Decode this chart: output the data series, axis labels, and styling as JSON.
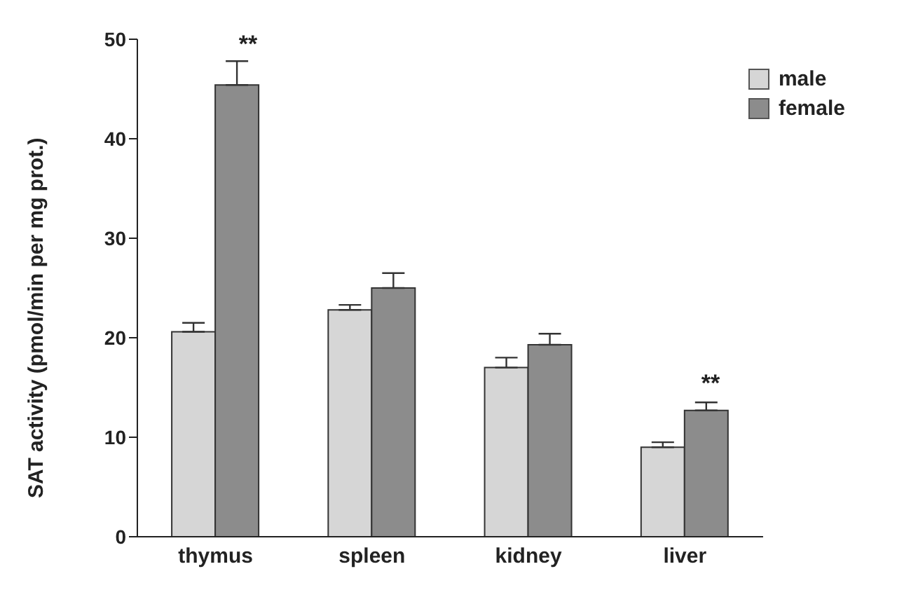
{
  "chart_data": {
    "type": "bar",
    "ylabel": "SAT activity (pmol/min per mg prot.)",
    "categories": [
      "thymus",
      "spleen",
      "kidney",
      "liver"
    ],
    "series": [
      {
        "name": "male",
        "color": "#d6d6d6",
        "values": [
          20.6,
          22.8,
          17.0,
          9.0
        ],
        "errors": [
          [
            20.6,
            21.5
          ],
          [
            22.8,
            23.3
          ],
          [
            17.0,
            18.0
          ],
          [
            9.0,
            9.5
          ]
        ]
      },
      {
        "name": "female",
        "color": "#8c8c8c",
        "values": [
          45.4,
          25.0,
          19.3,
          12.7
        ],
        "errors": [
          [
            45.4,
            47.8
          ],
          [
            25.0,
            26.5
          ],
          [
            19.3,
            20.4
          ],
          [
            12.7,
            13.5
          ]
        ]
      }
    ],
    "ylim": [
      0,
      50
    ],
    "yticks": [
      0,
      10,
      20,
      30,
      40,
      50
    ],
    "grid": false,
    "legend": "top right",
    "annotations": [
      "**",
      "**"
    ]
  }
}
